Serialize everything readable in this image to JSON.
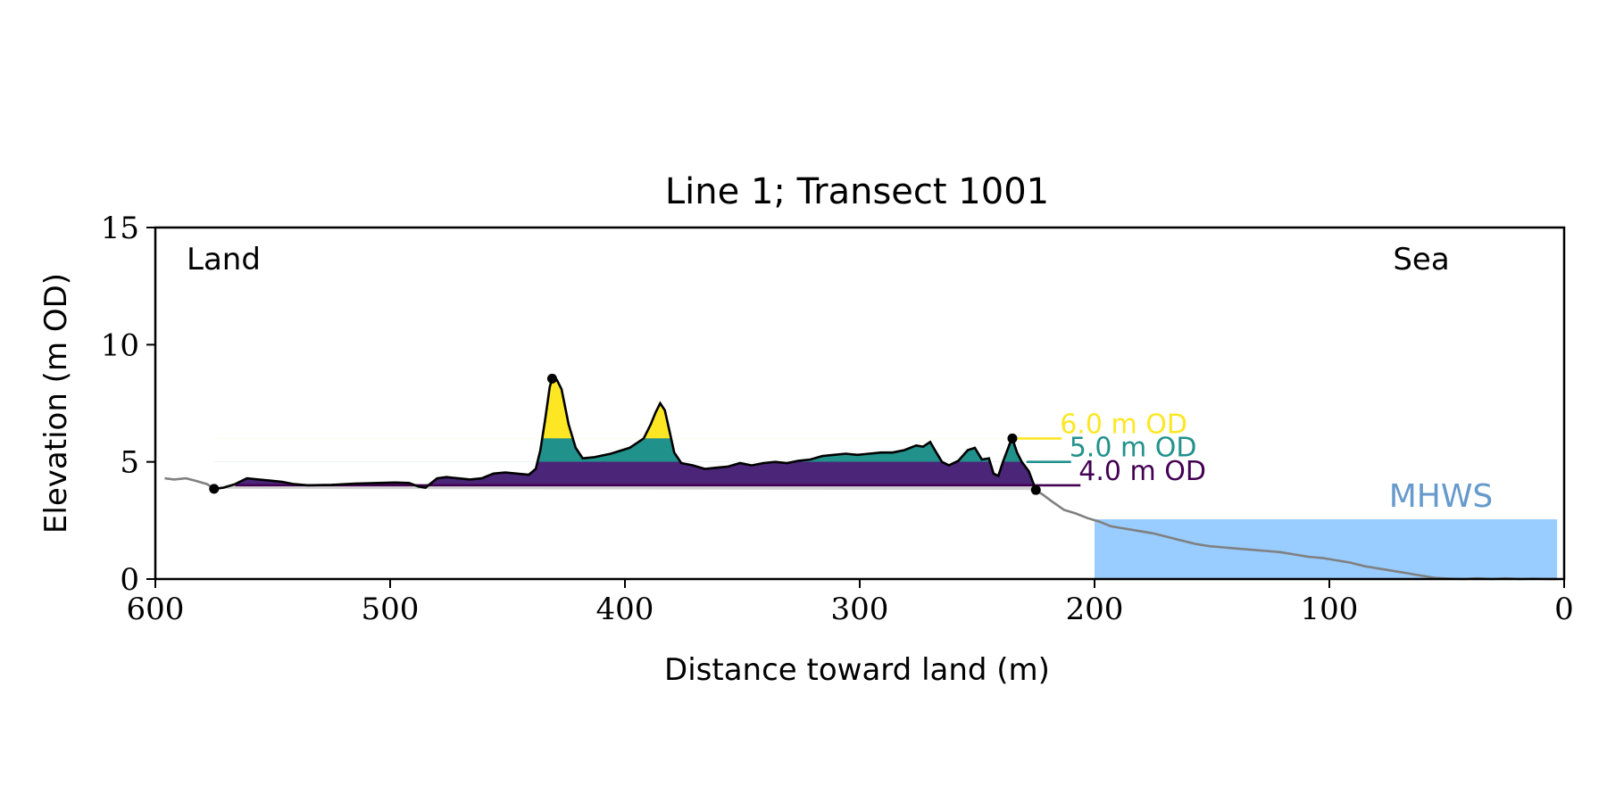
{
  "chart_data": {
    "type": "area",
    "title": "Line 1; Transect 1001",
    "xlabel": "Distance toward land (m)",
    "ylabel": "Elevation (m OD)",
    "xlim": [
      600,
      0
    ],
    "ylim": [
      0,
      15
    ],
    "x_axis_reversed": true,
    "xticks": [
      600,
      500,
      400,
      300,
      200,
      100,
      0
    ],
    "yticks": [
      0,
      5,
      10,
      15
    ],
    "grid": false,
    "annotations": {
      "land": "Land",
      "sea": "Sea",
      "mhws": "MHWS"
    },
    "mhws": {
      "elevation": 2.55,
      "x_from": 200,
      "x_to": 3
    },
    "thresholds": [
      {
        "label": "6.0 m OD",
        "elevation": 6.0,
        "color": "#fde725"
      },
      {
        "label": "5.0 m OD",
        "elevation": 5.0,
        "color": "#21918c"
      },
      {
        "label": "4.0 m OD",
        "elevation": 4.0,
        "color": "#440154"
      }
    ],
    "fill_color": "#4a2578",
    "profile_colors": {
      "dune": "#000000",
      "other": "#808080",
      "base_fill": "#d3d3d3",
      "sea": "#99ccff",
      "mhws_text": "#6699cc"
    },
    "dune_toe_x": 225,
    "dune_heel_x": 575,
    "crest_markers": [
      {
        "x": 431,
        "y": 8.55
      },
      {
        "x": 235,
        "y": 6.0
      },
      {
        "x": 575,
        "y": 3.85
      },
      {
        "x": 225,
        "y": 3.8
      }
    ],
    "profile": [
      [
        596,
        4.3
      ],
      [
        592,
        4.25
      ],
      [
        587,
        4.3
      ],
      [
        583,
        4.2
      ],
      [
        578,
        4.05
      ],
      [
        575,
        3.85
      ],
      [
        571,
        3.9
      ],
      [
        566,
        4.05
      ],
      [
        561,
        4.3
      ],
      [
        556,
        4.25
      ],
      [
        551,
        4.2
      ],
      [
        546,
        4.15
      ],
      [
        541,
        4.05
      ],
      [
        535,
        4.0
      ],
      [
        525,
        4.02
      ],
      [
        515,
        4.07
      ],
      [
        505,
        4.1
      ],
      [
        498,
        4.12
      ],
      [
        492,
        4.1
      ],
      [
        488,
        3.95
      ],
      [
        485,
        3.9
      ],
      [
        480,
        4.3
      ],
      [
        476,
        4.35
      ],
      [
        471,
        4.3
      ],
      [
        466,
        4.25
      ],
      [
        461,
        4.3
      ],
      [
        456,
        4.5
      ],
      [
        451,
        4.55
      ],
      [
        446,
        4.5
      ],
      [
        441,
        4.45
      ],
      [
        438,
        4.7
      ],
      [
        436,
        5.5
      ],
      [
        434,
        6.8
      ],
      [
        432,
        8.2
      ],
      [
        431,
        8.55
      ],
      [
        429,
        8.5
      ],
      [
        427,
        8.1
      ],
      [
        424,
        6.6
      ],
      [
        421,
        5.6
      ],
      [
        418,
        5.15
      ],
      [
        413,
        5.2
      ],
      [
        406,
        5.35
      ],
      [
        398,
        5.6
      ],
      [
        392,
        6.0
      ],
      [
        389,
        6.6
      ],
      [
        387,
        7.1
      ],
      [
        385,
        7.5
      ],
      [
        383,
        7.2
      ],
      [
        381,
        6.3
      ],
      [
        379,
        5.4
      ],
      [
        376,
        4.95
      ],
      [
        371,
        4.85
      ],
      [
        366,
        4.7
      ],
      [
        361,
        4.75
      ],
      [
        356,
        4.8
      ],
      [
        351,
        4.95
      ],
      [
        346,
        4.85
      ],
      [
        341,
        4.95
      ],
      [
        336,
        5.0
      ],
      [
        331,
        4.95
      ],
      [
        326,
        5.05
      ],
      [
        321,
        5.1
      ],
      [
        316,
        5.25
      ],
      [
        311,
        5.3
      ],
      [
        306,
        5.35
      ],
      [
        301,
        5.3
      ],
      [
        296,
        5.35
      ],
      [
        291,
        5.4
      ],
      [
        286,
        5.4
      ],
      [
        281,
        5.5
      ],
      [
        276,
        5.7
      ],
      [
        273,
        5.65
      ],
      [
        270,
        5.85
      ],
      [
        268,
        5.5
      ],
      [
        265,
        5.0
      ],
      [
        262,
        4.85
      ],
      [
        258,
        5.05
      ],
      [
        254,
        5.5
      ],
      [
        251,
        5.6
      ],
      [
        248,
        5.1
      ],
      [
        245,
        5.15
      ],
      [
        243,
        4.5
      ],
      [
        241,
        4.4
      ],
      [
        239,
        5.0
      ],
      [
        236,
        5.8
      ],
      [
        235,
        6.0
      ],
      [
        233,
        5.4
      ],
      [
        231,
        5.0
      ],
      [
        228,
        4.6
      ],
      [
        225,
        3.8
      ],
      [
        222,
        3.6
      ],
      [
        218,
        3.3
      ],
      [
        213,
        2.95
      ],
      [
        208,
        2.8
      ],
      [
        203,
        2.6
      ],
      [
        198,
        2.45
      ],
      [
        193,
        2.25
      ],
      [
        187,
        2.15
      ],
      [
        181,
        2.05
      ],
      [
        175,
        1.95
      ],
      [
        169,
        1.8
      ],
      [
        163,
        1.65
      ],
      [
        157,
        1.5
      ],
      [
        151,
        1.4
      ],
      [
        145,
        1.35
      ],
      [
        139,
        1.3
      ],
      [
        133,
        1.25
      ],
      [
        127,
        1.2
      ],
      [
        121,
        1.15
      ],
      [
        115,
        1.05
      ],
      [
        109,
        0.95
      ],
      [
        103,
        0.9
      ],
      [
        97,
        0.8
      ],
      [
        91,
        0.7
      ],
      [
        85,
        0.55
      ],
      [
        79,
        0.45
      ],
      [
        73,
        0.35
      ],
      [
        67,
        0.25
      ],
      [
        61,
        0.15
      ],
      [
        55,
        0.05
      ],
      [
        49,
        0.02
      ],
      [
        43,
        0.0
      ],
      [
        37,
        0.03
      ],
      [
        31,
        0.0
      ],
      [
        25,
        0.03
      ],
      [
        19,
        0.0
      ],
      [
        13,
        0.02
      ],
      [
        7,
        0.0
      ],
      [
        3,
        0.0
      ]
    ]
  }
}
